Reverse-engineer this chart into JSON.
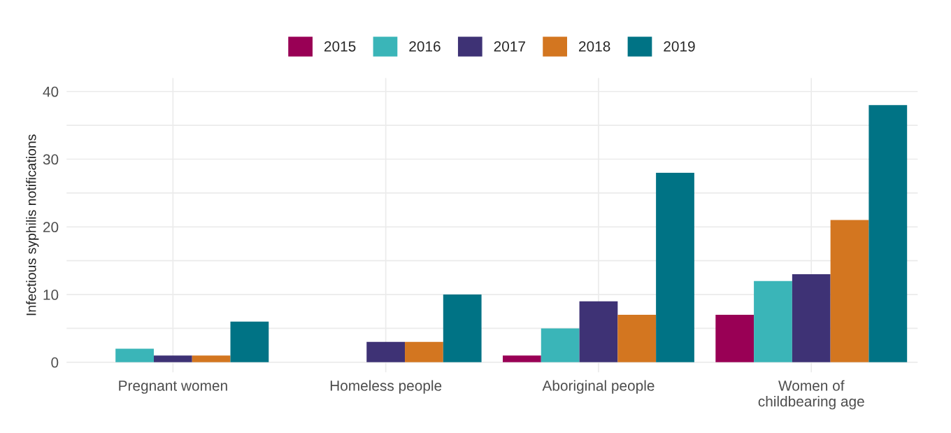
{
  "chart_data": {
    "type": "bar",
    "ylabel": "Infectious syphilis notifications",
    "categories": [
      "Pregnant women",
      "Homeless people",
      "Aboriginal people",
      "Women of\nchildbearing age"
    ],
    "series": [
      {
        "name": "2015",
        "color": "#990055",
        "values": [
          0,
          0,
          1,
          7
        ]
      },
      {
        "name": "2016",
        "color": "#3ab5b8",
        "values": [
          2,
          0,
          5,
          12
        ]
      },
      {
        "name": "2017",
        "color": "#3e3275",
        "values": [
          1,
          3,
          9,
          13
        ]
      },
      {
        "name": "2018",
        "color": "#d37620",
        "values": [
          1,
          3,
          7,
          21
        ]
      },
      {
        "name": "2019",
        "color": "#007385",
        "values": [
          6,
          10,
          28,
          38
        ]
      }
    ],
    "ylim": [
      -1.5,
      42
    ],
    "yticks": [
      0,
      {
        "value": 5,
        "label": null
      },
      10,
      {
        "value": 15,
        "label": null
      },
      20,
      {
        "value": 25,
        "label": null
      },
      30,
      {
        "value": 35,
        "label": null
      },
      40
    ],
    "grid": true,
    "legend": "top"
  }
}
